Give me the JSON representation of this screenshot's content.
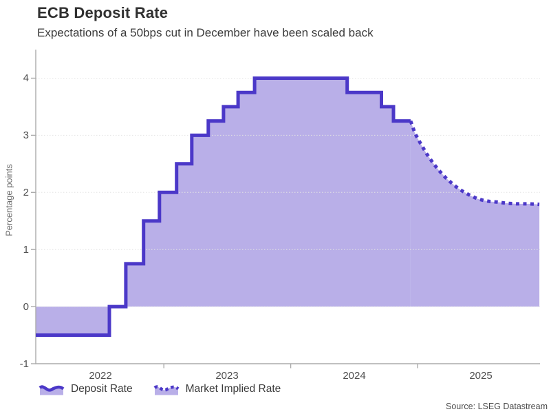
{
  "source": "Source: LSEG Datastream",
  "colors": {
    "line": "#4b38c8",
    "fill": "#b9afe8",
    "grid": "#e4e4e4",
    "axis": "#ababab"
  },
  "chart_data": {
    "type": "line",
    "title": "ECB Deposit Rate",
    "subtitle": "Expectations of a 50bps cut in December have been scaled back",
    "xlabel": "",
    "ylabel": "Percentage points",
    "ylim": [
      -1,
      4.5
    ],
    "yticks": [
      -1,
      0,
      1,
      2,
      3,
      4
    ],
    "xlim_years": [
      2021.99,
      2025.965
    ],
    "xticks_years": [
      2023,
      2024,
      2025
    ],
    "xtick_labels": [
      {
        "label": "2022",
        "x": 2022.5
      },
      {
        "label": "2023",
        "x": 2023.5
      },
      {
        "label": "2024",
        "x": 2024.5
      },
      {
        "label": "2025",
        "x": 2025.5
      }
    ],
    "grid": "horizontal dotted at y = 0,1,2,3,4",
    "legend_position": "bottom-left",
    "fill_baseline": 0,
    "series": [
      {
        "name": "Deposit Rate",
        "style": "solid-step",
        "fill_to_zero": true,
        "points": [
          [
            2021.99,
            -0.5
          ],
          [
            2022.57,
            -0.5
          ],
          [
            2022.57,
            0.0
          ],
          [
            2022.7,
            0.0
          ],
          [
            2022.7,
            0.75
          ],
          [
            2022.84,
            0.75
          ],
          [
            2022.84,
            1.5
          ],
          [
            2022.965,
            1.5
          ],
          [
            2022.965,
            2.0
          ],
          [
            2023.1,
            2.0
          ],
          [
            2023.1,
            2.5
          ],
          [
            2023.22,
            2.5
          ],
          [
            2023.22,
            3.0
          ],
          [
            2023.35,
            3.0
          ],
          [
            2023.35,
            3.25
          ],
          [
            2023.47,
            3.25
          ],
          [
            2023.47,
            3.5
          ],
          [
            2023.585,
            3.5
          ],
          [
            2023.585,
            3.75
          ],
          [
            2023.715,
            3.75
          ],
          [
            2023.715,
            4.0
          ],
          [
            2024.445,
            4.0
          ],
          [
            2024.445,
            3.75
          ],
          [
            2024.715,
            3.75
          ],
          [
            2024.715,
            3.5
          ],
          [
            2024.81,
            3.5
          ],
          [
            2024.81,
            3.25
          ],
          [
            2024.945,
            3.25
          ]
        ]
      },
      {
        "name": "Market Implied Rate",
        "style": "dotted",
        "fill_to_zero": true,
        "points": [
          [
            2024.945,
            3.25
          ],
          [
            2024.98,
            3.03
          ],
          [
            2025.02,
            2.87
          ],
          [
            2025.07,
            2.68
          ],
          [
            2025.12,
            2.52
          ],
          [
            2025.17,
            2.38
          ],
          [
            2025.22,
            2.26
          ],
          [
            2025.27,
            2.16
          ],
          [
            2025.32,
            2.07
          ],
          [
            2025.37,
            2.0
          ],
          [
            2025.42,
            1.94
          ],
          [
            2025.47,
            1.89
          ],
          [
            2025.52,
            1.86
          ],
          [
            2025.57,
            1.84
          ],
          [
            2025.63,
            1.83
          ],
          [
            2025.7,
            1.81
          ],
          [
            2025.78,
            1.8
          ],
          [
            2025.88,
            1.8
          ],
          [
            2025.96,
            1.79
          ]
        ]
      }
    ]
  }
}
